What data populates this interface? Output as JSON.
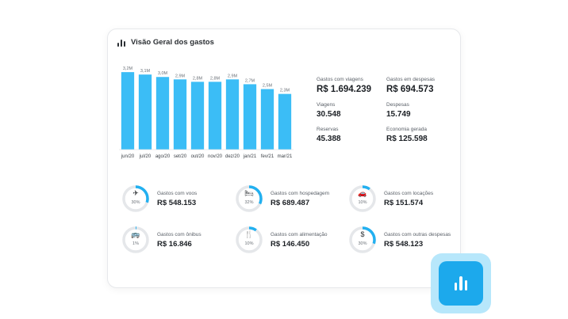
{
  "card": {
    "title": "Visão Geral dos gastos",
    "title_icon": "bar-chart-icon"
  },
  "colors": {
    "bar": "#3bbdf6",
    "ring_track": "#e5e7ea",
    "ring_fill": "#22b0f0",
    "badge_outer": "#b7e7fb",
    "badge_inner": "#1ca9ec"
  },
  "chart_data": {
    "type": "bar",
    "categories": [
      "jun/20",
      "jul/20",
      "ago/20",
      "set/20",
      "out/20",
      "nov/20",
      "dez/20",
      "jan/21",
      "fev/21",
      "mar/21"
    ],
    "values": [
      3.2,
      3.1,
      3.0,
      2.9,
      2.8,
      2.8,
      2.9,
      2.7,
      2.5,
      2.3
    ],
    "data_labels": [
      "3,2M",
      "3,1M",
      "3,0M",
      "2,9M",
      "2,8M",
      "2,8M",
      "2,9M",
      "2,7M",
      "2,5M",
      "2,3M"
    ],
    "title": "",
    "xlabel": "",
    "ylabel": "",
    "ylim": [
      0,
      3.4
    ],
    "grid": false,
    "legend": "none"
  },
  "stats": [
    {
      "label": "Gastos com viagens",
      "value": "R$ 1.694.239",
      "size": "big"
    },
    {
      "label": "Gastos em despesas",
      "value": "R$ 694.573",
      "size": "big"
    },
    {
      "label": "Viagens",
      "value": "30.548",
      "size": "mid"
    },
    {
      "label": "Despesas",
      "value": "15.749",
      "size": "mid"
    },
    {
      "label": "Reservas",
      "value": "45.388",
      "size": "mid"
    },
    {
      "label": "Economia gerada",
      "value": "R$ 125.598",
      "size": "mid"
    }
  ],
  "categories": [
    {
      "label": "Gastos com voos",
      "value": "R$ 548.153",
      "percent": 30,
      "percent_text": "30%",
      "icon": "airplane-icon",
      "glyph": "✈"
    },
    {
      "label": "Gastos com hospedagem",
      "value": "R$ 689.487",
      "percent": 32,
      "percent_text": "32%",
      "icon": "bed-icon",
      "glyph": "🛏"
    },
    {
      "label": "Gastos com locações",
      "value": "R$ 151.574",
      "percent": 10,
      "percent_text": "10%",
      "icon": "car-icon",
      "glyph": "🚗"
    },
    {
      "label": "Gastos com ônibus",
      "value": "R$ 16.846",
      "percent": 1,
      "percent_text": "1%",
      "icon": "bus-icon",
      "glyph": "🚌"
    },
    {
      "label": "Gastos com alimentação",
      "value": "R$ 146.450",
      "percent": 10,
      "percent_text": "10%",
      "icon": "cutlery-icon",
      "glyph": "🍴"
    },
    {
      "label": "Gastos com outras despesas",
      "value": "R$ 548.123",
      "percent": 30,
      "percent_text": "30%",
      "icon": "dollar-coin-icon",
      "glyph": "$"
    }
  ],
  "badge": {
    "icon": "bar-chart-icon"
  }
}
